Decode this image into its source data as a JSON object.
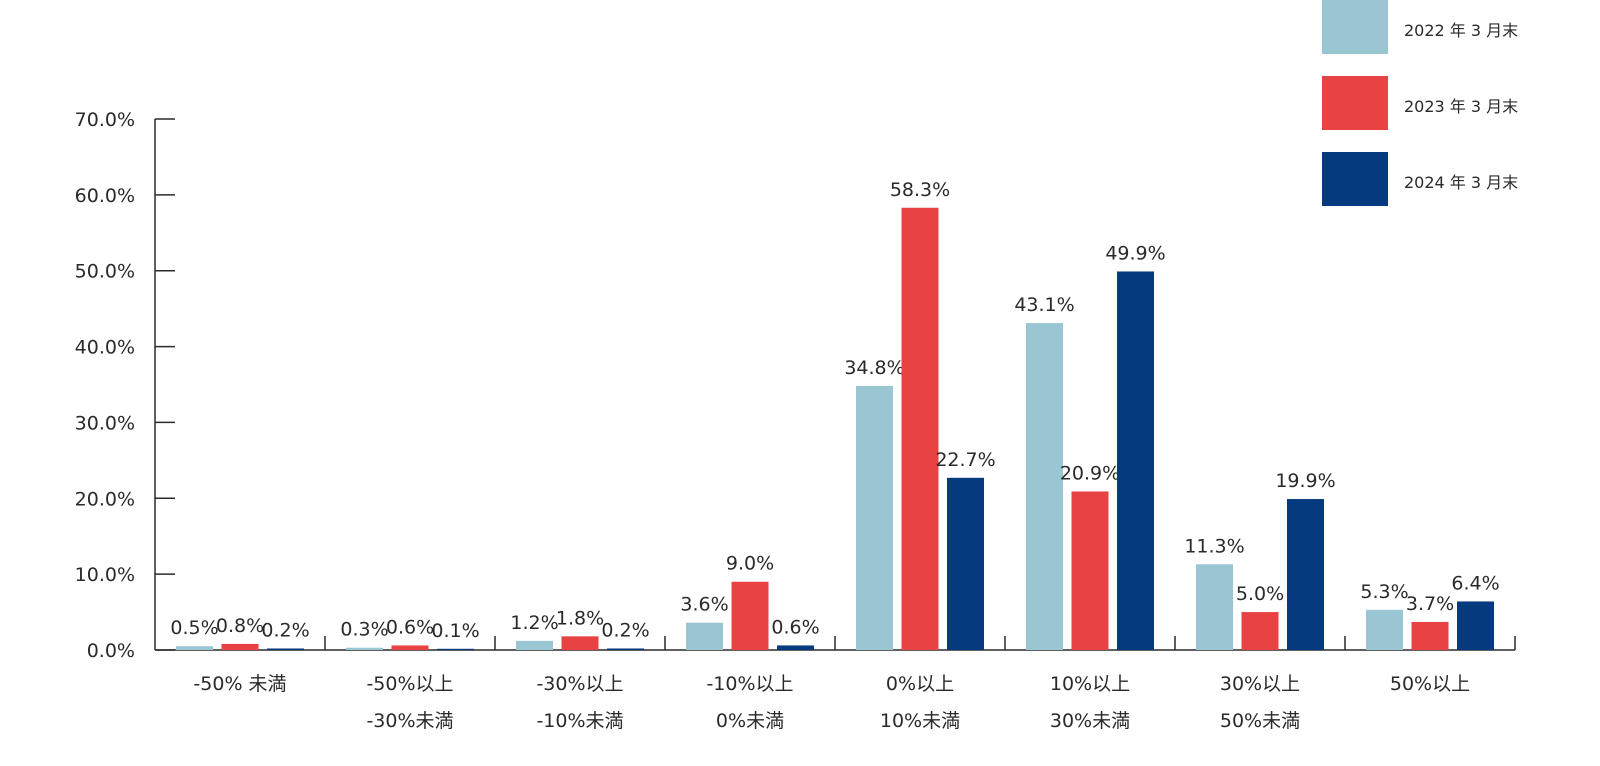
{
  "chart_data": {
    "type": "bar",
    "title": "",
    "xlabel": "",
    "ylabel": "",
    "ylim": [
      0,
      70
    ],
    "yticks": [
      "0.0%",
      "10.0%",
      "20.0%",
      "30.0%",
      "40.0%",
      "50.0%",
      "60.0%",
      "70.0%"
    ],
    "categories": [
      [
        "-50% 未満"
      ],
      [
        "-50%以上",
        "-30%未満"
      ],
      [
        "-30%以上",
        "-10%未満"
      ],
      [
        "-10%以上",
        "0%未満"
      ],
      [
        "0%以上",
        "10%未満"
      ],
      [
        "10%以上",
        "30%未満"
      ],
      [
        "30%以上",
        "50%未満"
      ],
      [
        "50%以上"
      ]
    ],
    "series": [
      {
        "name": "2022 年 3 月末",
        "color": "#99c6d2",
        "values": [
          0.5,
          0.3,
          1.2,
          3.6,
          34.8,
          43.1,
          11.3,
          5.3
        ],
        "labels": [
          "0.5%",
          "0.3%",
          "1.2%",
          "3.6%",
          "34.8%",
          "43.1%",
          "11.3%",
          "5.3%"
        ]
      },
      {
        "name": "2023 年 3 月末",
        "color": "#e84242",
        "values": [
          0.8,
          0.6,
          1.8,
          9.0,
          58.3,
          20.9,
          5.0,
          3.7
        ],
        "labels": [
          "0.8%",
          "0.6%",
          "1.8%",
          "9.0%",
          "58.3%",
          "20.9%",
          "5.0%",
          "3.7%"
        ]
      },
      {
        "name": "2024 年 3 月末",
        "color": "#053a7e",
        "values": [
          0.2,
          0.1,
          0.2,
          0.6,
          22.7,
          49.9,
          19.9,
          6.4
        ],
        "labels": [
          "0.2%",
          "0.1%",
          "0.2%",
          "0.6%",
          "22.7%",
          "49.9%",
          "19.9%",
          "6.4%"
        ]
      }
    ],
    "legend_position": "top-right",
    "grid": false
  }
}
